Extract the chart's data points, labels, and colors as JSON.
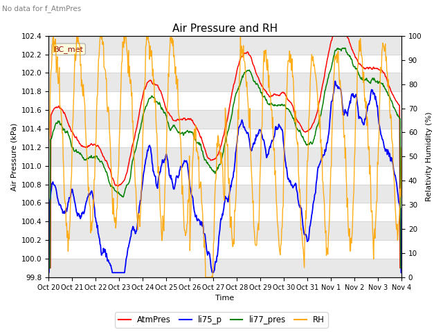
{
  "title": "Air Pressure and RH",
  "subtitle": "No data for f_AtmPres",
  "xlabel": "Time",
  "ylabel_left": "Air Pressure (kPa)",
  "ylabel_right": "Relativity Humidity (%)",
  "ylim_left": [
    99.8,
    102.4
  ],
  "ylim_right": [
    0,
    100
  ],
  "yticks_left": [
    99.8,
    100.0,
    100.2,
    100.4,
    100.6,
    100.8,
    101.0,
    101.2,
    101.4,
    101.6,
    101.8,
    102.0,
    102.2,
    102.4
  ],
  "yticks_right": [
    0,
    10,
    20,
    30,
    40,
    50,
    60,
    70,
    80,
    90,
    100
  ],
  "xtick_labels": [
    "Oct 20",
    "Oct 21",
    "Oct 22",
    "Oct 23",
    "Oct 24",
    "Oct 25",
    "Oct 26",
    "Oct 27",
    "Oct 28",
    "Oct 29",
    "Oct 30",
    "Oct 31",
    "Nov 1",
    "Nov 2",
    "Nov 3",
    "Nov 4"
  ],
  "legend_labels": [
    "AtmPres",
    "li75_p",
    "li77_pres",
    "RH"
  ],
  "legend_colors": [
    "red",
    "blue",
    "green",
    "orange"
  ],
  "bc_met_label": "BC_met",
  "plot_bg_color": "#ffffff",
  "band_color": "#e8e8e8",
  "grid_color": "#d0d0d0",
  "subtitle_color": "#808080"
}
